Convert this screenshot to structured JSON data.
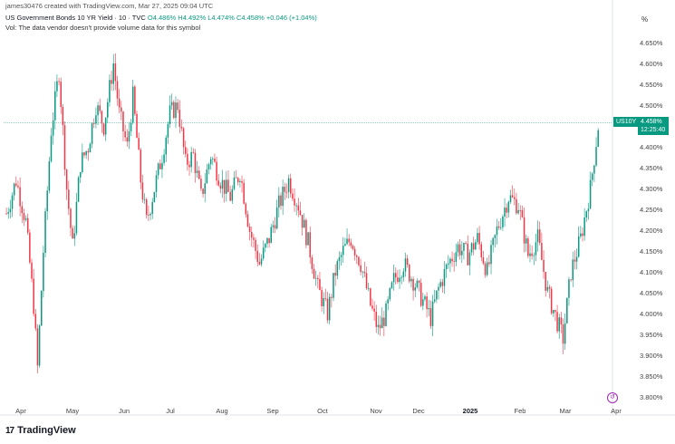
{
  "header": {
    "created_by": "james30476 created with TradingView.com, Mar 27, 2025 09:04 UTC",
    "symbol": "US Government Bonds 10 YR Yield · 10 · TVC",
    "open": "O4.486%",
    "high": "H4.492%",
    "low": "L4.474%",
    "close": "C4.458%",
    "change": "+0.046 (+1.04%)",
    "volume_note": "Vol: The data vendor doesn't provide volume data for this symbol",
    "pct_label": "%"
  },
  "last_price": {
    "ticker": "US10Y",
    "value": "4.458%",
    "countdown": "12:25:40"
  },
  "colors": {
    "up": "#089981",
    "down": "#f23645",
    "accent": "#089981"
  },
  "chart_data": {
    "type": "candlestick",
    "y_ticks": [
      "4.650%",
      "4.600%",
      "4.550%",
      "4.500%",
      "4.450%",
      "4.400%",
      "4.350%",
      "4.300%",
      "4.250%",
      "4.200%",
      "4.150%",
      "4.100%",
      "4.050%",
      "4.000%",
      "3.950%",
      "3.900%",
      "3.850%",
      "3.800%"
    ],
    "ylim": [
      3.8,
      4.65
    ],
    "x_ticks": [
      {
        "label": "Apr",
        "bold": false
      },
      {
        "label": "May",
        "bold": false
      },
      {
        "label": "Jun",
        "bold": false
      },
      {
        "label": "Jul",
        "bold": false
      },
      {
        "label": "Aug",
        "bold": false
      },
      {
        "label": "Sep",
        "bold": false
      },
      {
        "label": "Oct",
        "bold": false
      },
      {
        "label": "Nov",
        "bold": false
      },
      {
        "label": "Dec",
        "bold": false
      },
      {
        "label": "2025",
        "bold": true
      },
      {
        "label": "Feb",
        "bold": false
      },
      {
        "label": "Mar",
        "bold": false
      },
      {
        "label": "Apr",
        "bold": false
      }
    ],
    "path": [
      [
        0,
        4.24
      ],
      [
        5,
        4.32
      ],
      [
        10,
        4.22
      ],
      [
        14,
        4.02
      ],
      [
        16,
        3.87
      ],
      [
        19,
        4.15
      ],
      [
        23,
        4.44
      ],
      [
        27,
        4.58
      ],
      [
        31,
        4.3
      ],
      [
        34,
        4.16
      ],
      [
        38,
        4.36
      ],
      [
        42,
        4.4
      ],
      [
        46,
        4.5
      ],
      [
        50,
        4.45
      ],
      [
        55,
        4.6
      ],
      [
        58,
        4.48
      ],
      [
        62,
        4.4
      ],
      [
        65,
        4.52
      ],
      [
        69,
        4.32
      ],
      [
        72,
        4.22
      ],
      [
        76,
        4.3
      ],
      [
        80,
        4.38
      ],
      [
        84,
        4.48
      ],
      [
        88,
        4.5
      ],
      [
        92,
        4.36
      ],
      [
        96,
        4.38
      ],
      [
        100,
        4.28
      ],
      [
        105,
        4.38
      ],
      [
        110,
        4.32
      ],
      [
        115,
        4.28
      ],
      [
        120,
        4.34
      ],
      [
        125,
        4.2
      ],
      [
        130,
        4.12
      ],
      [
        135,
        4.18
      ],
      [
        140,
        4.26
      ],
      [
        145,
        4.32
      ],
      [
        150,
        4.26
      ],
      [
        155,
        4.17
      ],
      [
        160,
        4.06
      ],
      [
        165,
        4.0
      ],
      [
        169,
        4.1
      ],
      [
        173,
        4.15
      ],
      [
        177,
        4.18
      ],
      [
        182,
        4.12
      ],
      [
        187,
        4.02
      ],
      [
        191,
        3.96
      ],
      [
        195,
        4.0
      ],
      [
        199,
        4.08
      ],
      [
        204,
        4.12
      ],
      [
        209,
        4.08
      ],
      [
        214,
        4.03
      ],
      [
        218,
        3.99
      ],
      [
        222,
        4.06
      ],
      [
        227,
        4.12
      ],
      [
        232,
        4.16
      ],
      [
        237,
        4.14
      ],
      [
        242,
        4.18
      ],
      [
        247,
        4.1
      ],
      [
        252,
        4.2
      ],
      [
        258,
        4.28
      ],
      [
        263,
        4.26
      ],
      [
        268,
        4.14
      ],
      [
        273,
        4.18
      ],
      [
        278,
        4.05
      ],
      [
        283,
        3.98
      ],
      [
        286,
        3.94
      ],
      [
        290,
        4.1
      ],
      [
        295,
        4.18
      ],
      [
        300,
        4.3
      ],
      [
        304,
        4.45
      ]
    ],
    "x_max": 310
  },
  "brand": {
    "logo": "17",
    "name": "TradingView"
  }
}
